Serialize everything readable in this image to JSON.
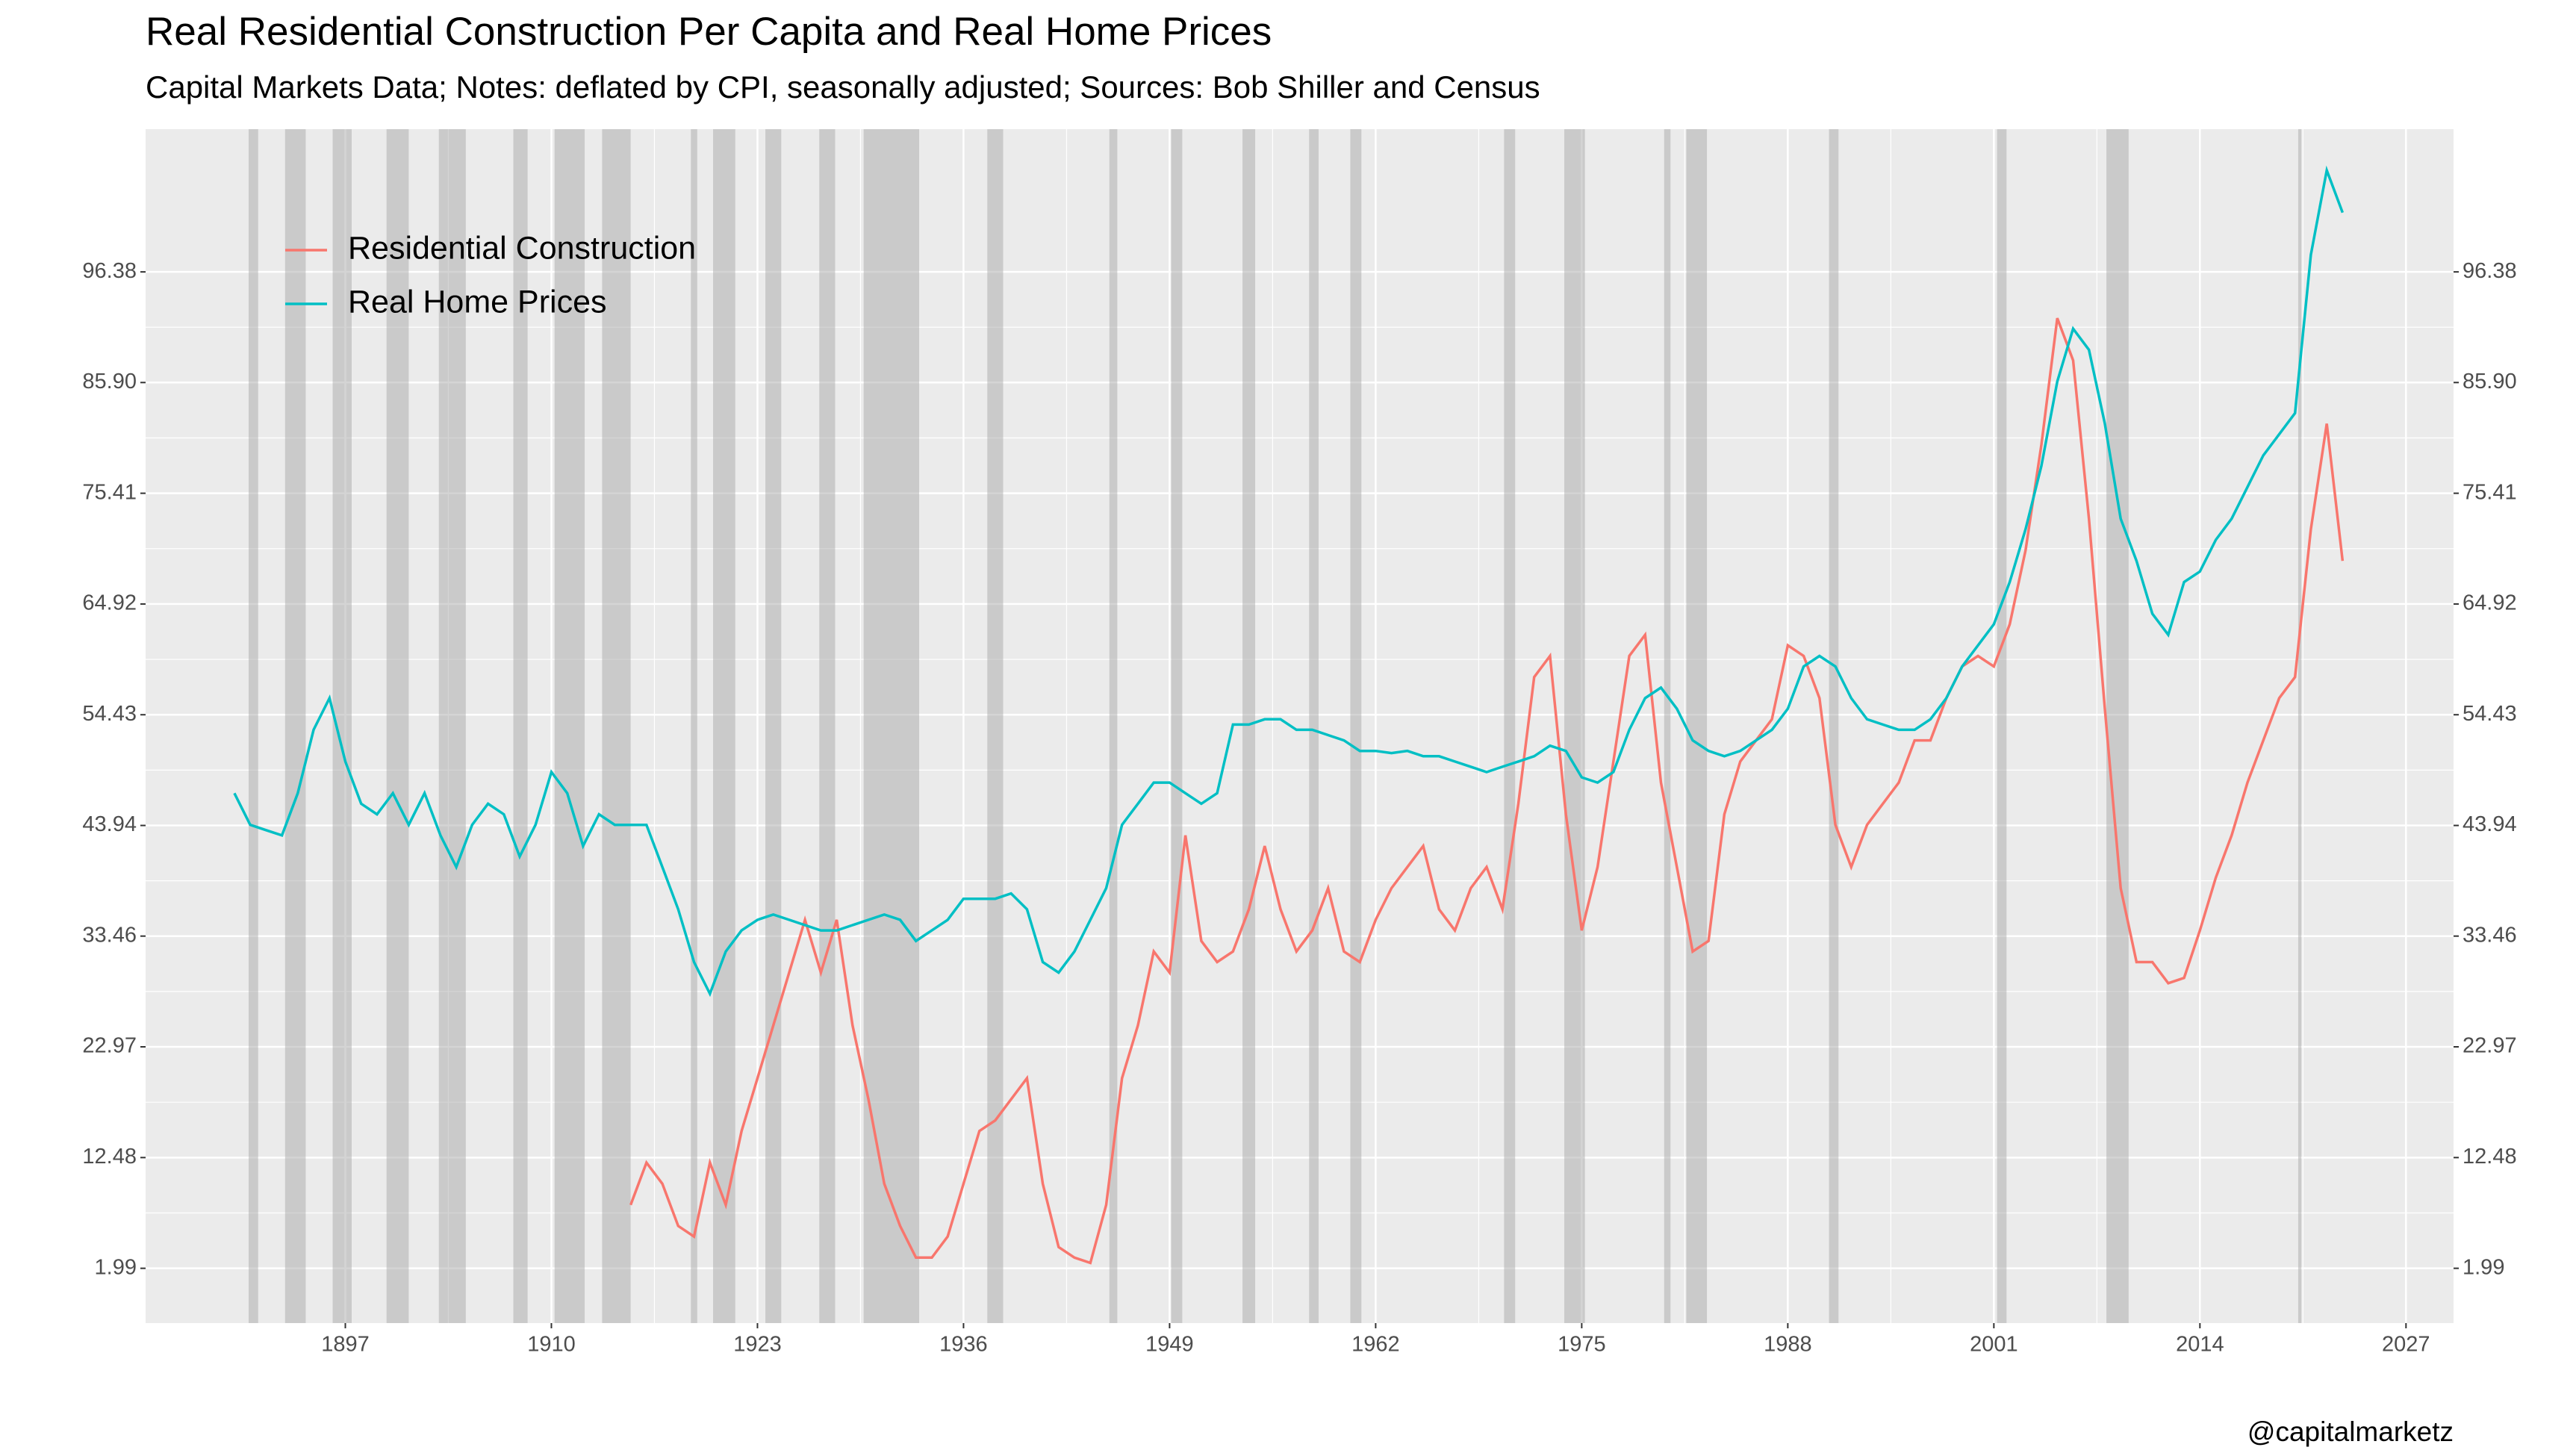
{
  "chart_data": {
    "type": "line",
    "title": "Real Residential Construction Per Capita and Real Home Prices",
    "subtitle": "Capital Markets Data; Notes: deflated by CPI, seasonally adjusted; Sources: Bob Shiller and Census",
    "caption": "@capitalmarketz",
    "x": [
      1890,
      1891,
      1892,
      1893,
      1894,
      1895,
      1896,
      1897,
      1898,
      1899,
      1900,
      1901,
      1902,
      1903,
      1904,
      1905,
      1906,
      1907,
      1908,
      1909,
      1910,
      1911,
      1912,
      1913,
      1914,
      1915,
      1916,
      1917,
      1918,
      1919,
      1920,
      1921,
      1922,
      1923,
      1924,
      1925,
      1926,
      1927,
      1928,
      1929,
      1930,
      1931,
      1932,
      1933,
      1934,
      1935,
      1936,
      1937,
      1938,
      1939,
      1940,
      1941,
      1942,
      1943,
      1944,
      1945,
      1946,
      1947,
      1948,
      1949,
      1950,
      1951,
      1952,
      1953,
      1954,
      1955,
      1956,
      1957,
      1958,
      1959,
      1960,
      1961,
      1962,
      1963,
      1964,
      1965,
      1966,
      1967,
      1968,
      1969,
      1970,
      1971,
      1972,
      1973,
      1974,
      1975,
      1976,
      1977,
      1978,
      1979,
      1980,
      1981,
      1982,
      1983,
      1984,
      1985,
      1986,
      1987,
      1988,
      1989,
      1990,
      1991,
      1992,
      1993,
      1994,
      1995,
      1996,
      1997,
      1998,
      1999,
      2000,
      2001,
      2002,
      2003,
      2004,
      2005,
      2006,
      2007,
      2008,
      2009,
      2010,
      2011,
      2012,
      2013,
      2014,
      2015,
      2016,
      2017,
      2018,
      2019,
      2020,
      2021,
      2022,
      2023
    ],
    "series": [
      {
        "name": "Residential Construction",
        "color": "#F8766D",
        "values": [
          null,
          null,
          null,
          null,
          null,
          null,
          null,
          null,
          null,
          null,
          null,
          null,
          null,
          null,
          null,
          null,
          null,
          null,
          null,
          null,
          null,
          null,
          null,
          null,
          null,
          8,
          12,
          10,
          6,
          5,
          12,
          8,
          15,
          20,
          25,
          30,
          35,
          30,
          35,
          25,
          18,
          10,
          6,
          3,
          3,
          5,
          10,
          15,
          16,
          18,
          20,
          10,
          4,
          3,
          2.5,
          8,
          20,
          25,
          32,
          30,
          43,
          33,
          31,
          32,
          36,
          42,
          36,
          32,
          34,
          38,
          32,
          31,
          35,
          38,
          40,
          42,
          36,
          34,
          38,
          40,
          36,
          46,
          58,
          60,
          45,
          34,
          40,
          50,
          60,
          62,
          48,
          40,
          32,
          33,
          45,
          50,
          52,
          54,
          61,
          60,
          56,
          44,
          40,
          44,
          46,
          48,
          52,
          52,
          56,
          59,
          60,
          59,
          63,
          70,
          80,
          92,
          88,
          73,
          55,
          38,
          31,
          31,
          29,
          29.5,
          34,
          39,
          43,
          48,
          52,
          56,
          58,
          72,
          82,
          69
        ]
      },
      {
        "name": "Real Home Prices",
        "color": "#00BFC4",
        "values": [
          47,
          44,
          43.5,
          43,
          47,
          53,
          56,
          50,
          46,
          45,
          47,
          44,
          47,
          43,
          40,
          44,
          46,
          45,
          41,
          44,
          49,
          47,
          42,
          45,
          44,
          44,
          44,
          40,
          36,
          31,
          28,
          32,
          34,
          35,
          35.5,
          35,
          34.5,
          34,
          34,
          34.5,
          35,
          35.5,
          35,
          33,
          34,
          35,
          37,
          37,
          37,
          37.5,
          36,
          31,
          30,
          32,
          35,
          38,
          44,
          46,
          48,
          48,
          47,
          46,
          47,
          53.5,
          53.5,
          54,
          54,
          53,
          53,
          52.5,
          52,
          51,
          51,
          50.8,
          51,
          50.5,
          50.5,
          50,
          49.5,
          49,
          49.5,
          50,
          50.5,
          51.5,
          51,
          48.5,
          48,
          49,
          53,
          56,
          57,
          55,
          52,
          51,
          50.5,
          51,
          52,
          53,
          55,
          59,
          60,
          59,
          56,
          54,
          53.5,
          53,
          53,
          54,
          56,
          59,
          61,
          63,
          67,
          72,
          78,
          86,
          91,
          89,
          82,
          73,
          69,
          64,
          62,
          67,
          68,
          71,
          73,
          76,
          79,
          81,
          83,
          98,
          106,
          102
        ]
      }
    ],
    "recessions": [
      [
        1890.9,
        1891.5
      ],
      [
        1893.2,
        1894.5
      ],
      [
        1896.2,
        1897.4
      ],
      [
        1899.6,
        1901.0
      ],
      [
        1902.9,
        1904.6
      ],
      [
        1907.6,
        1908.5
      ],
      [
        1910.2,
        1912.1
      ],
      [
        1913.2,
        1915.0
      ],
      [
        1918.8,
        1919.2
      ],
      [
        1920.2,
        1921.6
      ],
      [
        1923.5,
        1924.5
      ],
      [
        1926.9,
        1927.9
      ],
      [
        1929.7,
        1933.2
      ],
      [
        1937.5,
        1938.5
      ],
      [
        1945.2,
        1945.7
      ],
      [
        1949.1,
        1949.8
      ],
      [
        1953.6,
        1954.4
      ],
      [
        1957.8,
        1958.4
      ],
      [
        1960.4,
        1961.1
      ],
      [
        1970.1,
        1970.8
      ],
      [
        1973.9,
        1975.2
      ],
      [
        1980.2,
        1980.6
      ],
      [
        1981.6,
        1982.9
      ],
      [
        1990.6,
        1991.2
      ],
      [
        2001.2,
        2001.8
      ],
      [
        2008.1,
        2009.5
      ],
      [
        2020.2,
        2020.4
      ]
    ],
    "xlim": [
      1884.4,
      2030.0
    ],
    "xticks": [
      1897,
      1910,
      1923,
      1936,
      1949,
      1962,
      1975,
      1988,
      2001,
      2014,
      2027
    ],
    "ylim": [
      -3.2,
      109.9
    ],
    "yticks": [
      1.99,
      12.48,
      22.97,
      33.46,
      43.94,
      54.43,
      64.92,
      75.41,
      {
        "value": 85.9,
        "label": "85.90"
      },
      96.38
    ],
    "grid": true,
    "legend": "top-left"
  }
}
